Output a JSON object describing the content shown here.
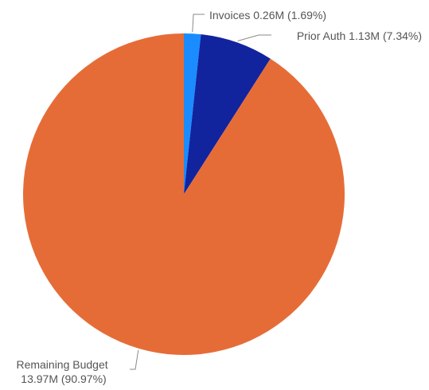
{
  "colors": {
    "invoices": "#1a8cff",
    "prior_auth": "#12239e",
    "remaining_budget": "#e66c37",
    "label_text": "#555555",
    "leader_line": "#8a8a8a"
  },
  "chart_data": {
    "type": "pie",
    "title": "",
    "start_angle_deg": 0,
    "direction": "clockwise",
    "legend": "none",
    "slices": [
      {
        "key": "invoices",
        "name": "Invoices",
        "value": 0.26,
        "percent": 1.69,
        "label_lines": [
          "Invoices 0.26M (1.69%)"
        ]
      },
      {
        "key": "prior_auth",
        "name": "Prior Auth",
        "value": 1.13,
        "percent": 7.34,
        "label_lines": [
          "Prior Auth 1.13M (7.34%)"
        ]
      },
      {
        "key": "remaining_budget",
        "name": "Remaining Budget",
        "value": 13.97,
        "percent": 90.97,
        "label_lines": [
          "Remaining Budget",
          "13.97M (90.97%)"
        ]
      }
    ]
  }
}
